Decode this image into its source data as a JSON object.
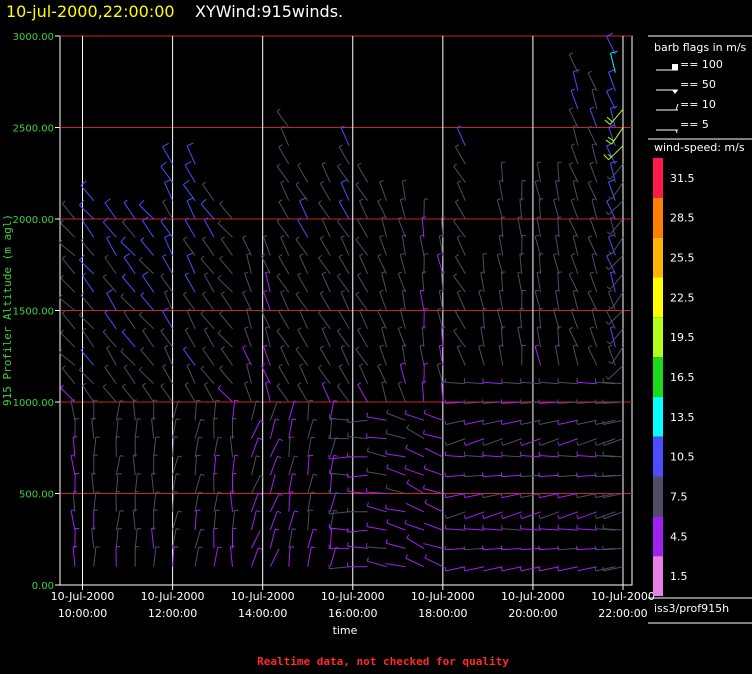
{
  "header": {
    "datetime": "10-jul-2000,22:00:00",
    "product": "XYWind:915winds."
  },
  "footer": {
    "quality_note": "Realtime data, not checked for quality"
  },
  "source_label": "iss3/prof915h",
  "legend": {
    "barb_title": "barb flags in m/s",
    "barb_items": [
      "== 100",
      "== 50",
      "== 10",
      "== 5"
    ],
    "speed_title": "wind-speed: m/s",
    "speed_bins": [
      {
        "label": "31.5",
        "color": "#ff1a4d"
      },
      {
        "label": "28.5",
        "color": "#ff8000"
      },
      {
        "label": "25.5",
        "color": "#ffb300"
      },
      {
        "label": "22.5",
        "color": "#ffff00"
      },
      {
        "label": "19.5",
        "color": "#b3ff1a"
      },
      {
        "label": "16.5",
        "color": "#1adb1a"
      },
      {
        "label": "13.5",
        "color": "#00ffff"
      },
      {
        "label": "10.5",
        "color": "#4d4dff"
      },
      {
        "label": "7.5",
        "color": "#4d4d66"
      },
      {
        "label": "4.5",
        "color": "#a020f0"
      },
      {
        "label": "1.5",
        "color": "#e680e6"
      }
    ]
  },
  "chart_data": {
    "type": "wind-barb time-height",
    "ylabel": "915 Profiler Altitude (m agl)",
    "xlabel": "time",
    "ylim": [
      0,
      3000
    ],
    "yticks": [
      "0.00",
      "500.00",
      "1000.00",
      "1500.00",
      "2000.00",
      "2500.00",
      "3000.00"
    ],
    "xlim_hours": [
      9.5,
      22.2
    ],
    "xticks": [
      {
        "hour": 10,
        "date": "10-Jul-2000",
        "time": "10:00:00"
      },
      {
        "hour": 12,
        "date": "10-Jul-2000",
        "time": "12:00:00"
      },
      {
        "hour": 14,
        "date": "10-Jul-2000",
        "time": "14:00:00"
      },
      {
        "hour": 16,
        "date": "10-Jul-2000",
        "time": "16:00:00"
      },
      {
        "hour": 18,
        "date": "10-Jul-2000",
        "time": "18:00:00"
      },
      {
        "hour": 20,
        "date": "10-Jul-2000",
        "time": "20:00:00"
      },
      {
        "hour": 22,
        "date": "10-Jul-2000",
        "time": "22:00:00"
      }
    ],
    "grid": {
      "horizontal": true,
      "vertical": true
    },
    "colors": {
      "hgrid": "#cc2222",
      "vgrid": "#ffffff",
      "ytick_text": "#3cd23c"
    },
    "barb_columns": [
      {
        "hour": 9.83,
        "top_alt": 2050,
        "speed": 7,
        "dir": 315
      },
      {
        "hour": 10.25,
        "top_alt": 2100,
        "speed": 9,
        "dir": 320
      },
      {
        "hour": 10.75,
        "top_alt": 2050,
        "speed": 9,
        "dir": 325
      },
      {
        "hour": 11.17,
        "top_alt": 2050,
        "speed": 9,
        "dir": 320
      },
      {
        "hour": 11.58,
        "top_alt": 2000,
        "speed": 9,
        "dir": 320
      },
      {
        "hour": 12.0,
        "top_alt": 2380,
        "speed": 9,
        "dir": 330
      },
      {
        "hour": 12.5,
        "top_alt": 2350,
        "speed": 9,
        "dir": 330
      },
      {
        "hour": 12.92,
        "top_alt": 2150,
        "speed": 8,
        "dir": 325
      },
      {
        "hour": 13.33,
        "top_alt": 2000,
        "speed": 7,
        "dir": 320
      },
      {
        "hour": 13.75,
        "top_alt": 1850,
        "speed": 7,
        "dir": 340
      },
      {
        "hour": 14.17,
        "top_alt": 1850,
        "speed": 6,
        "dir": 340
      },
      {
        "hour": 14.58,
        "top_alt": 2550,
        "speed": 7,
        "dir": 330
      },
      {
        "hour": 15.0,
        "top_alt": 2250,
        "speed": 8,
        "dir": 330
      },
      {
        "hour": 15.5,
        "top_alt": 2200,
        "speed": 7,
        "dir": 330
      },
      {
        "hour": 15.92,
        "top_alt": 2450,
        "speed": 8,
        "dir": 330
      },
      {
        "hour": 16.33,
        "top_alt": 2200,
        "speed": 7,
        "dir": 330
      },
      {
        "hour": 16.75,
        "top_alt": 2150,
        "speed": 7,
        "dir": 340
      },
      {
        "hour": 17.17,
        "top_alt": 2100,
        "speed": 7,
        "dir": 345
      },
      {
        "hour": 17.58,
        "top_alt": 2050,
        "speed": 6,
        "dir": 355
      },
      {
        "hour": 18.0,
        "top_alt": 1900,
        "speed": 6,
        "dir": 350
      },
      {
        "hour": 18.5,
        "top_alt": 2450,
        "speed": 7,
        "dir": 330
      },
      {
        "hour": 18.92,
        "top_alt": 1700,
        "speed": 7,
        "dir": 350
      },
      {
        "hour": 19.33,
        "top_alt": 2250,
        "speed": 7,
        "dir": 350
      },
      {
        "hour": 19.75,
        "top_alt": 2150,
        "speed": 7,
        "dir": 355
      },
      {
        "hour": 20.17,
        "top_alt": 2200,
        "speed": 7,
        "dir": 350
      },
      {
        "hour": 20.58,
        "top_alt": 2200,
        "speed": 7,
        "dir": 350
      },
      {
        "hour": 21.0,
        "top_alt": 2850,
        "speed": 7,
        "dir": 340
      },
      {
        "hour": 21.42,
        "top_alt": 2700,
        "speed": 7,
        "dir": 340
      },
      {
        "hour": 21.83,
        "top_alt": 2950,
        "speed": 9,
        "dir": 340
      },
      {
        "hour": 22.0,
        "top_alt": 2600,
        "speed": 17,
        "dir": 220
      }
    ],
    "level_step_m": 100
  }
}
